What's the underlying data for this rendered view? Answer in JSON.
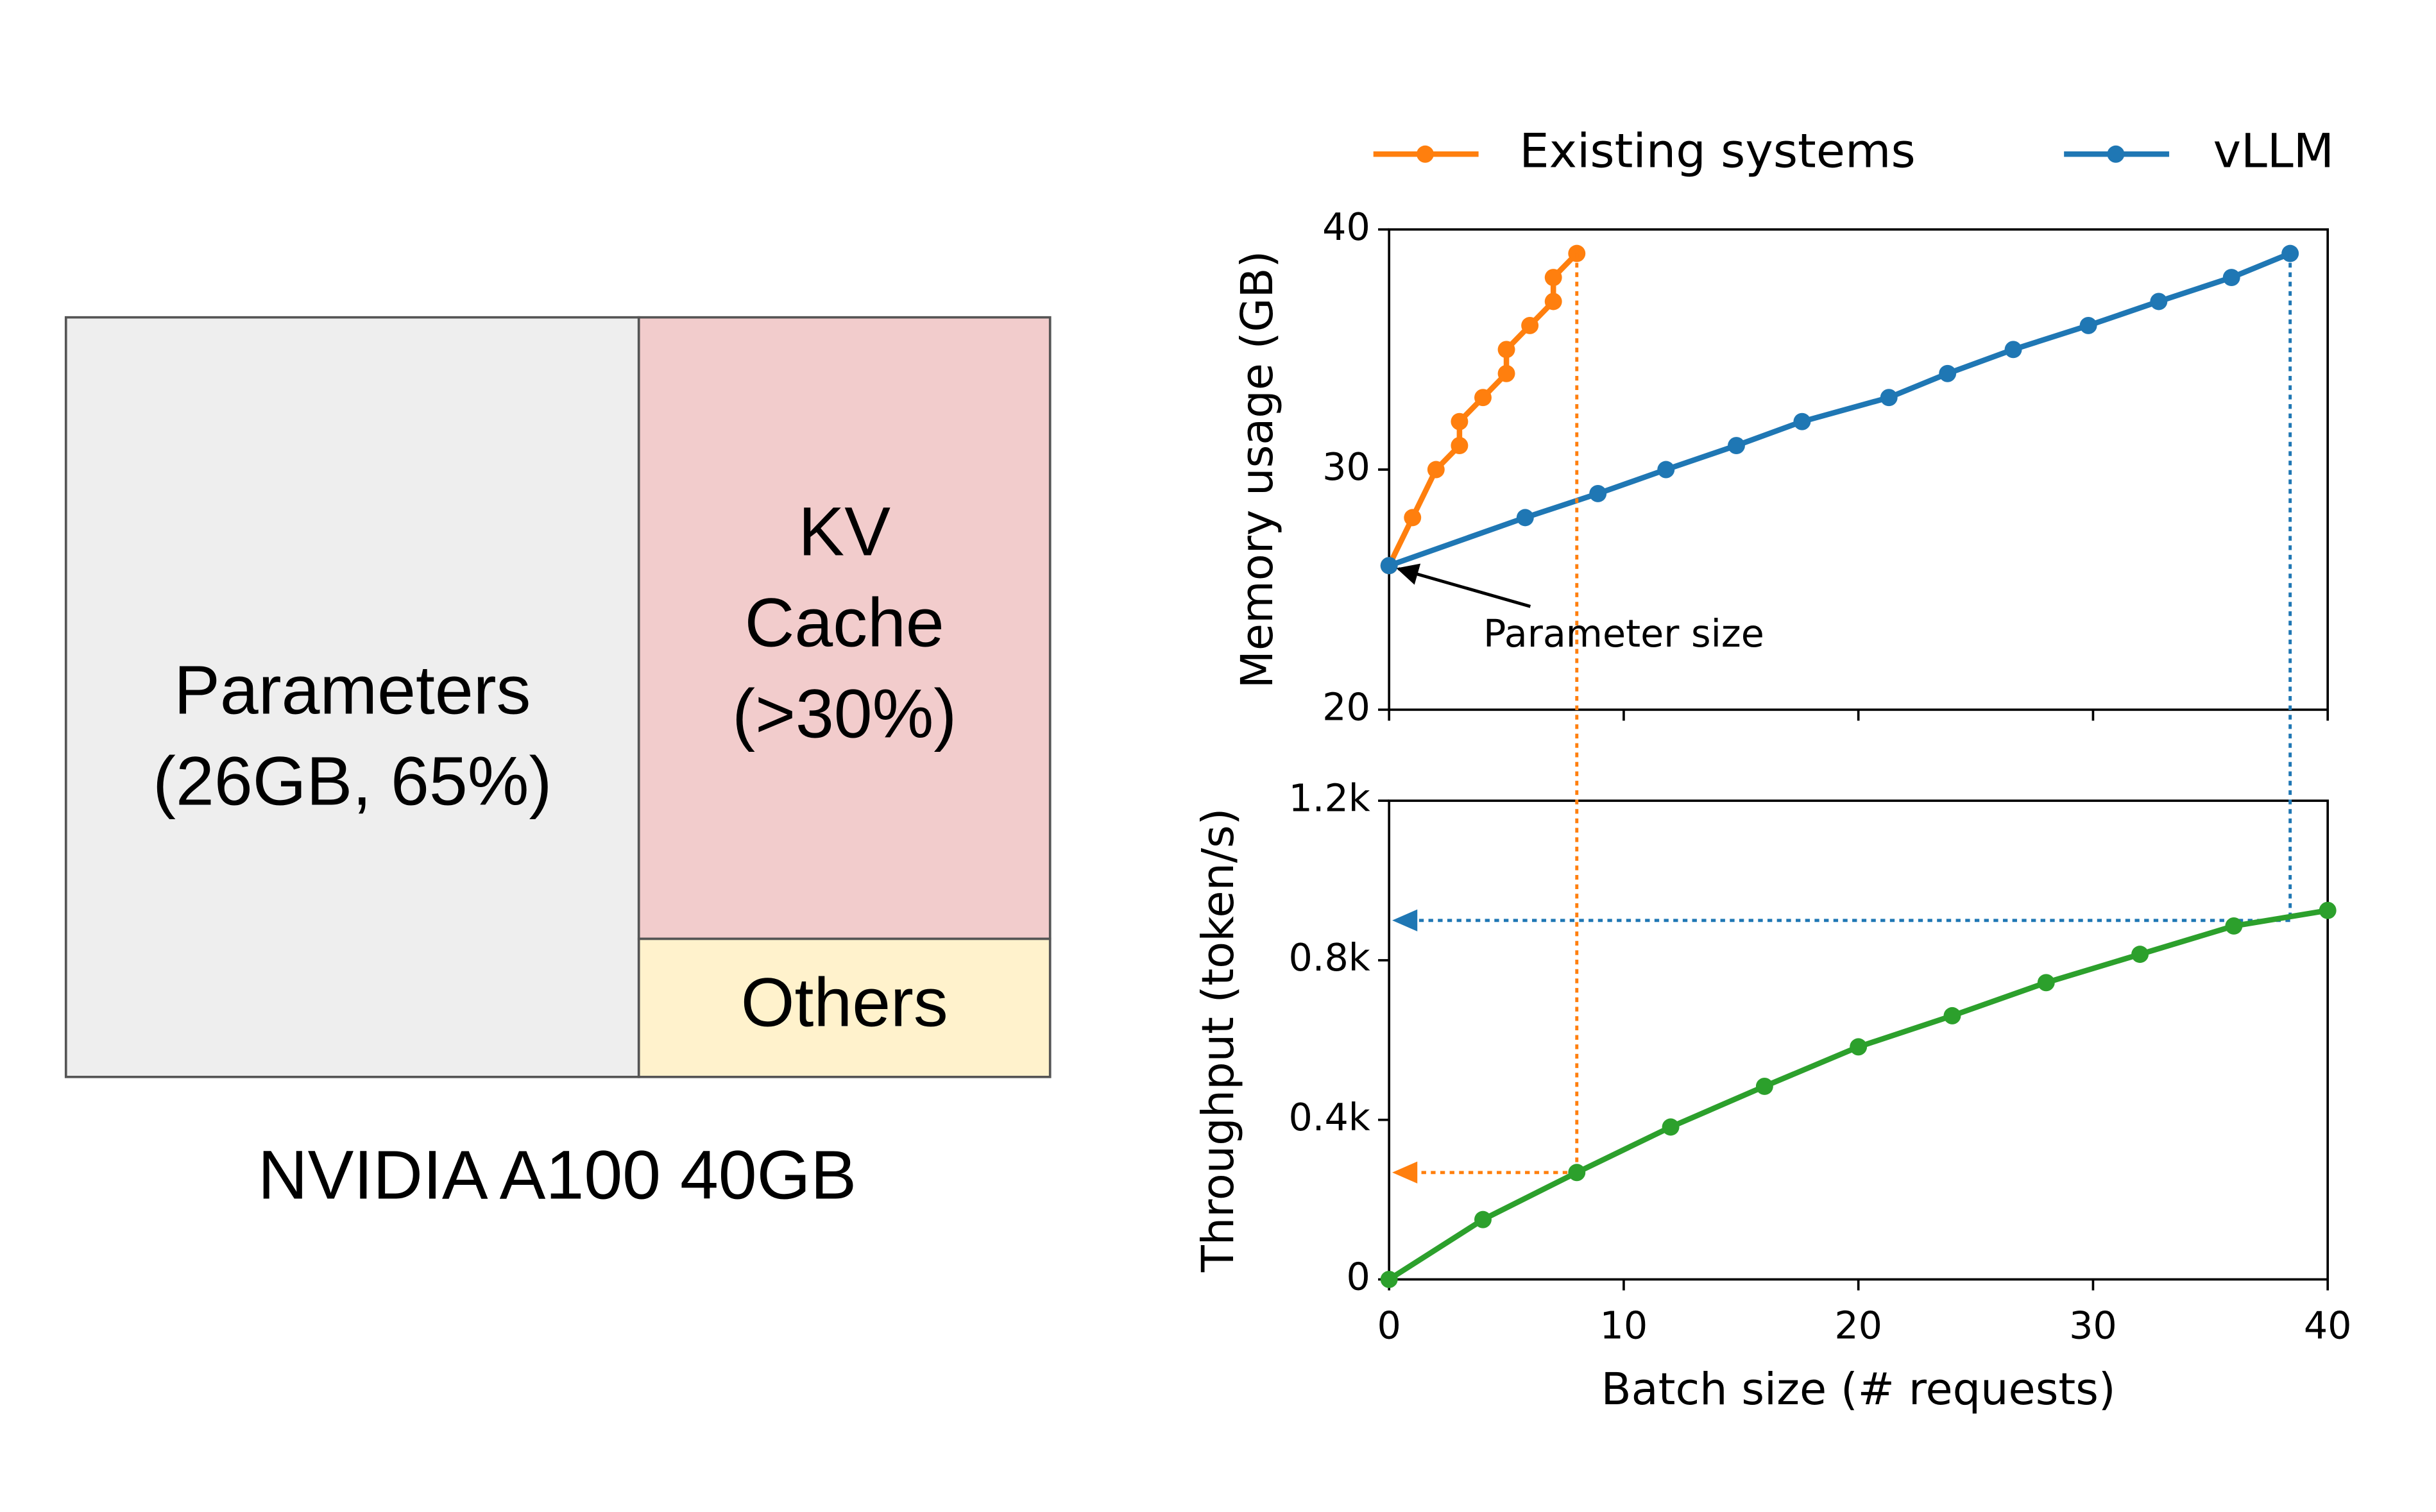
{
  "chart_data": [
    {
      "type": "memory-layout",
      "caption": "NVIDIA A100 40GB",
      "blocks": [
        {
          "lines": [
            "Parameters",
            "(26GB, 65%)"
          ],
          "color": "#eeeeee"
        },
        {
          "lines": [
            "KV",
            "Cache",
            "(>30%)"
          ],
          "color": "#f2cccc"
        },
        {
          "lines": [
            "Others"
          ],
          "color": "#fff2cc"
        }
      ]
    },
    {
      "type": "line",
      "ylabel": "Memory usage (GB)",
      "xlim": [
        0,
        40
      ],
      "xticks": [
        0,
        10,
        20,
        30,
        40
      ],
      "xtick_labels": false,
      "ylim": [
        20,
        40
      ],
      "yticks": [
        20,
        30,
        40
      ],
      "legend": "top",
      "series": [
        {
          "name": "Existing systems",
          "color": "#ff7f0e",
          "x": [
            0,
            1,
            2,
            3,
            3,
            4,
            5,
            5,
            6,
            7,
            7,
            8
          ],
          "values": [
            26,
            28,
            30,
            31,
            32,
            33,
            34,
            35,
            36,
            37,
            38,
            39
          ]
        },
        {
          "name": "vLLM",
          "color": "#1f77b4",
          "x": [
            0,
            5.8,
            8.9,
            11.8,
            14.8,
            17.6,
            21.3,
            23.8,
            26.6,
            29.8,
            32.8,
            35.9,
            38.4
          ],
          "values": [
            26,
            28,
            29,
            30,
            31,
            32,
            33,
            34,
            35,
            36,
            37,
            38,
            39
          ]
        }
      ],
      "annotations": [
        {
          "text": "Parameter size",
          "x": 0,
          "y": 26
        }
      ]
    },
    {
      "type": "line",
      "xlabel": "Batch size (# requests)",
      "ylabel": "Throughput (token/s)",
      "xlim": [
        0,
        40
      ],
      "xticks": [
        0,
        10,
        20,
        30,
        40
      ],
      "xtick_labels": true,
      "ylim": [
        0,
        1200
      ],
      "yticks": [
        0,
        {
          "value": 400,
          "label": "0.4k"
        },
        {
          "value": 800,
          "label": "0.8k"
        },
        {
          "value": 1200,
          "label": "1.2k"
        }
      ],
      "series": [
        {
          "color": "#2ca02c",
          "x": [
            0,
            4,
            8,
            12,
            16,
            20,
            24,
            28,
            32,
            36,
            40
          ],
          "values": [
            0,
            150,
            268,
            382,
            484,
            583,
            661,
            744,
            815,
            886,
            925
          ]
        }
      ],
      "reference_lines": [
        {
          "x": 8,
          "y_top": 39,
          "y": 268,
          "color": "#ff7f0e"
        },
        {
          "x": 38.4,
          "y_top": 39,
          "y": 900,
          "color": "#1f77b4"
        }
      ]
    }
  ]
}
